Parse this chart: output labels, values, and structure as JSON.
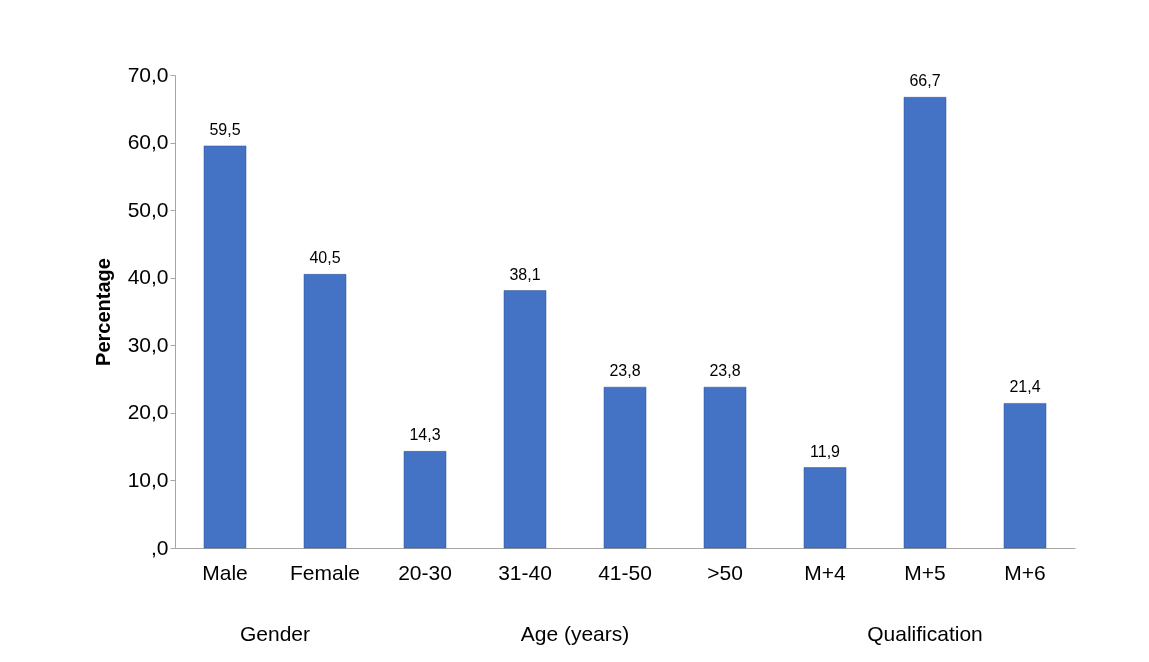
{
  "chart_data": {
    "type": "bar",
    "ylabel": "Percentage",
    "categories": [
      "Male",
      "Female",
      "20-30",
      "31-40",
      "41-50",
      ">50",
      "M+4",
      "M+5",
      "M+6"
    ],
    "values": [
      59.5,
      40.5,
      14.3,
      38.1,
      23.8,
      23.8,
      11.9,
      66.7,
      21.4
    ],
    "value_labels": [
      "59,5",
      "40,5",
      "14,3",
      "38,1",
      "23,8",
      "23,8",
      "11,9",
      "66,7",
      "21,4"
    ],
    "color": "#4472c4",
    "ylim": [
      0,
      70
    ],
    "yticks": [
      {
        "value": 0,
        "label": ",0"
      },
      {
        "value": 10,
        "label": "10,0"
      },
      {
        "value": 20,
        "label": "20,0"
      },
      {
        "value": 30,
        "label": "30,0"
      },
      {
        "value": 40,
        "label": "40,0"
      },
      {
        "value": 50,
        "label": "50,0"
      },
      {
        "value": 60,
        "label": "60,0"
      },
      {
        "value": 70,
        "label": "70,0"
      }
    ],
    "annotations": [
      "Gender",
      "Age (years)",
      "Qualification"
    ]
  }
}
